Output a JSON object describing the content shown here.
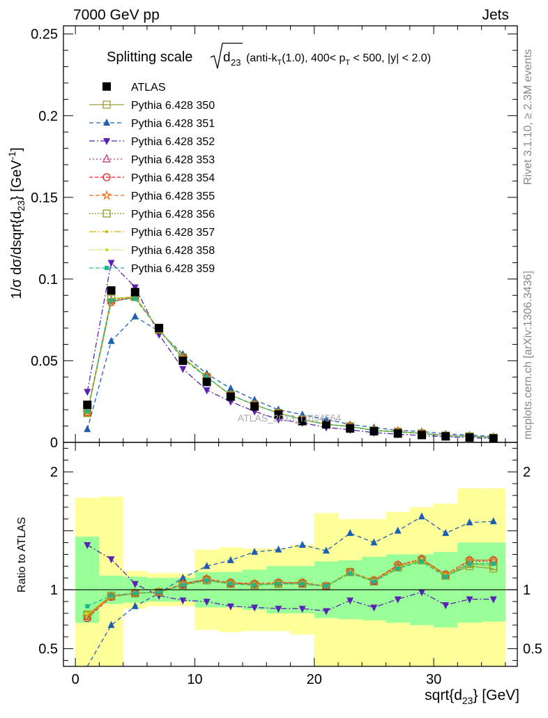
{
  "header": {
    "left": "7000 GeV pp",
    "right": "Jets",
    "side_top": "Rivet 3.1.10, ≥ 2.3M events",
    "side_bottom": "mcplots.cern.ch [arXiv:1306.3436]"
  },
  "chart_data": {
    "type": "scatter",
    "title": "Splitting scale",
    "title_detail": "(anti-k",
    "title_detail_sub": "T",
    "title_detail_rest": "(1.0), 400< p",
    "title_detail_sub2": "T",
    "title_detail_end": " < 500, |y| < 2.0)",
    "sqrt_symbol_arg": "d",
    "sqrt_symbol_sub": "23",
    "watermark": "ATLAS_2013_I1094564",
    "xlabel": "sqrt{d",
    "xlabel_sub": "23",
    "xlabel_end": "} [GeV]",
    "ylabel": "1/σ dσ/dsqrt{d",
    "ylabel_sub": "23",
    "ylabel_mid": "} [GeV",
    "ylabel_sup": "-1",
    "ylabel_end": "]",
    "ratio_ylabel": "Ratio to ATLAS",
    "xlim": [
      -1,
      37
    ],
    "ylim": [
      0,
      0.255
    ],
    "ratio_ylim": [
      0.35,
      2.25
    ],
    "x_ticks": [
      "0",
      "10",
      "20",
      "30"
    ],
    "y_ticks": [
      "0",
      "0.05",
      "0.1",
      "0.15",
      "0.2",
      "0.25"
    ],
    "ratio_y_ticks": [
      "0.5",
      "1",
      "2"
    ],
    "x": [
      1,
      3,
      5,
      7,
      9,
      11,
      13,
      15,
      17,
      19,
      21,
      23,
      25,
      27,
      29,
      31,
      33,
      35
    ],
    "bin_edges": [
      0,
      2,
      4,
      6,
      8,
      10,
      12,
      14,
      16,
      18,
      20,
      22,
      24,
      26,
      28,
      30,
      32,
      34,
      36
    ],
    "data": [
      0.023,
      0.093,
      0.092,
      0.07,
      0.05,
      0.037,
      0.028,
      0.022,
      0.017,
      0.013,
      0.011,
      0.0085,
      0.0068,
      0.0054,
      0.0045,
      0.0037,
      0.003,
      0.0024
    ],
    "band_inner": [
      [
        0.72,
        1.45
      ],
      [
        0.88,
        1.12
      ],
      [
        0.89,
        1.11
      ],
      [
        0.9,
        1.1
      ],
      [
        0.9,
        1.1
      ],
      [
        0.85,
        1.15
      ],
      [
        0.85,
        1.15
      ],
      [
        0.83,
        1.17
      ],
      [
        0.8,
        1.2
      ],
      [
        0.8,
        1.2
      ],
      [
        0.76,
        1.24
      ],
      [
        0.75,
        1.25
      ],
      [
        0.74,
        1.28
      ],
      [
        0.72,
        1.3
      ],
      [
        0.7,
        1.3
      ],
      [
        0.68,
        1.32
      ],
      [
        0.72,
        1.4
      ],
      [
        0.73,
        1.4
      ]
    ],
    "band_outer": [
      [
        0.35,
        1.78
      ],
      [
        0.35,
        1.79
      ],
      [
        0.84,
        1.16
      ],
      [
        0.86,
        1.14
      ],
      [
        0.86,
        1.14
      ],
      [
        0.66,
        1.34
      ],
      [
        0.64,
        1.36
      ],
      [
        0.65,
        1.35
      ],
      [
        0.65,
        1.35
      ],
      [
        0.62,
        1.38
      ],
      [
        0.35,
        1.65
      ],
      [
        0.35,
        1.6
      ],
      [
        0.35,
        1.6
      ],
      [
        0.35,
        1.66
      ],
      [
        0.35,
        1.7
      ],
      [
        0.35,
        1.73
      ],
      [
        0.35,
        1.86
      ],
      [
        0.35,
        1.86
      ]
    ],
    "series": [
      {
        "name": "ATLAS",
        "color": "#000000",
        "marker": "square-filled",
        "dash": "none",
        "values": [
          0.023,
          0.093,
          0.092,
          0.07,
          0.05,
          0.037,
          0.028,
          0.022,
          0.017,
          0.013,
          0.011,
          0.0085,
          0.0068,
          0.0054,
          0.0045,
          0.0037,
          0.003,
          0.0024
        ],
        "ratio": [
          1,
          1,
          1,
          1,
          1,
          1,
          1,
          1,
          1,
          1,
          1,
          1,
          1,
          1,
          1,
          1,
          1,
          1
        ]
      },
      {
        "name": "Pythia 6.428 350",
        "color": "#a09a34",
        "marker": "square-open",
        "dash": "none",
        "values": [
          0.018,
          0.088,
          0.089,
          0.069,
          0.052,
          0.04,
          0.029,
          0.023,
          0.018,
          0.014,
          0.011,
          0.0098,
          0.0073,
          0.0065,
          0.0055,
          0.0041,
          0.0037,
          0.0029
        ],
        "ratio": [
          0.78,
          0.95,
          0.97,
          0.98,
          1.04,
          1.08,
          1.05,
          1.04,
          1.05,
          1.05,
          1.03,
          1.15,
          1.07,
          1.19,
          1.25,
          1.12,
          1.2,
          1.18
        ]
      },
      {
        "name": "Pythia 6.428 351",
        "color": "#1a5fb4",
        "marker": "triangle-up",
        "dash": "6,4",
        "values": [
          0.008,
          0.062,
          0.077,
          0.068,
          0.054,
          0.042,
          0.033,
          0.026,
          0.02,
          0.017,
          0.014,
          0.011,
          0.0091,
          0.0074,
          0.0067,
          0.0052,
          0.0045,
          0.0036
        ],
        "ratio": [
          0.35,
          0.7,
          0.86,
          0.97,
          1.1,
          1.2,
          1.25,
          1.32,
          1.34,
          1.38,
          1.33,
          1.48,
          1.4,
          1.5,
          1.62,
          1.48,
          1.57,
          1.58
        ]
      },
      {
        "name": "Pythia 6.428 352",
        "color": "#5b21b6",
        "marker": "triangle-down",
        "dash": "8,3,2,3",
        "values": [
          0.031,
          0.11,
          0.095,
          0.066,
          0.045,
          0.032,
          0.025,
          0.019,
          0.014,
          0.012,
          0.0092,
          0.0077,
          0.006,
          0.005,
          0.0042,
          0.0034,
          0.0029,
          0.0023
        ],
        "ratio": [
          1.38,
          1.26,
          1.05,
          0.95,
          0.91,
          0.9,
          0.86,
          0.85,
          0.84,
          0.84,
          0.82,
          0.91,
          0.85,
          0.92,
          0.98,
          0.87,
          0.92,
          0.92
        ]
      },
      {
        "name": "Pythia 6.428 353",
        "color": "#c0307a",
        "marker": "triangle-open",
        "dash": "2,3",
        "values": [
          0.018,
          0.087,
          0.089,
          0.069,
          0.052,
          0.04,
          0.029,
          0.023,
          0.018,
          0.014,
          0.011,
          0.0098,
          0.0073,
          0.0066,
          0.0056,
          0.0041,
          0.0038,
          0.003
        ],
        "ratio": [
          0.77,
          0.94,
          0.97,
          0.98,
          1.04,
          1.09,
          1.05,
          1.05,
          1.06,
          1.05,
          1.03,
          1.15,
          1.07,
          1.2,
          1.26,
          1.12,
          1.24,
          1.24
        ]
      },
      {
        "name": "Pythia 6.428 354",
        "color": "#e01b24",
        "marker": "circle-open",
        "dash": "5,3",
        "values": [
          0.018,
          0.086,
          0.089,
          0.069,
          0.052,
          0.04,
          0.029,
          0.023,
          0.018,
          0.014,
          0.011,
          0.0098,
          0.0073,
          0.0066,
          0.0056,
          0.0042,
          0.0038,
          0.003
        ],
        "ratio": [
          0.76,
          0.94,
          0.97,
          0.98,
          1.05,
          1.09,
          1.06,
          1.05,
          1.06,
          1.06,
          1.03,
          1.15,
          1.08,
          1.21,
          1.26,
          1.13,
          1.25,
          1.25
        ]
      },
      {
        "name": "Pythia 6.428 355",
        "color": "#f07020",
        "marker": "star-open",
        "dash": "6,3",
        "values": [
          0.018,
          0.086,
          0.089,
          0.069,
          0.052,
          0.04,
          0.029,
          0.023,
          0.018,
          0.014,
          0.011,
          0.0098,
          0.0073,
          0.0066,
          0.0056,
          0.0042,
          0.0038,
          0.003
        ],
        "ratio": [
          0.77,
          0.94,
          0.97,
          0.98,
          1.05,
          1.09,
          1.06,
          1.05,
          1.06,
          1.06,
          1.03,
          1.15,
          1.08,
          1.21,
          1.26,
          1.13,
          1.25,
          1.25
        ]
      },
      {
        "name": "Pythia 6.428 356",
        "color": "#8a9a20",
        "marker": "square-open",
        "dash": "2,2",
        "values": [
          0.018,
          0.088,
          0.089,
          0.069,
          0.052,
          0.04,
          0.029,
          0.023,
          0.018,
          0.014,
          0.011,
          0.0098,
          0.0073,
          0.0065,
          0.0055,
          0.0041,
          0.0037,
          0.0029
        ],
        "ratio": [
          0.79,
          0.95,
          0.97,
          0.98,
          1.04,
          1.08,
          1.05,
          1.04,
          1.05,
          1.05,
          1.03,
          1.15,
          1.07,
          1.19,
          1.25,
          1.12,
          1.22,
          1.2
        ]
      },
      {
        "name": "Pythia 6.428 357",
        "color": "#d4b400",
        "marker": "dot",
        "dash": "10,3,2,3",
        "values": [
          0.018,
          0.088,
          0.089,
          0.069,
          0.052,
          0.04,
          0.029,
          0.023,
          0.018,
          0.014,
          0.011,
          0.0098,
          0.0073,
          0.0065,
          0.0055,
          0.0041,
          0.0037,
          0.0029
        ],
        "ratio": [
          0.79,
          0.95,
          0.97,
          0.98,
          1.04,
          1.08,
          1.05,
          1.04,
          1.05,
          1.05,
          1.03,
          1.15,
          1.07,
          1.19,
          1.25,
          1.12,
          1.22,
          1.22
        ]
      },
      {
        "name": "Pythia 6.428 358",
        "color": "#c8d400",
        "marker": "dot",
        "dash": "1,2",
        "values": [
          0.018,
          0.088,
          0.089,
          0.069,
          0.052,
          0.04,
          0.029,
          0.023,
          0.018,
          0.014,
          0.011,
          0.0098,
          0.0073,
          0.0065,
          0.0055,
          0.0041,
          0.0037,
          0.0029
        ],
        "ratio": [
          0.8,
          0.95,
          0.97,
          0.98,
          1.04,
          1.08,
          1.05,
          1.04,
          1.05,
          1.05,
          1.03,
          1.15,
          1.07,
          1.19,
          1.25,
          1.12,
          1.22,
          1.22
        ]
      },
      {
        "name": "Pythia 6.428 359",
        "color": "#1ab890",
        "marker": "square-filled-small",
        "dash": "6,3",
        "values": [
          0.019,
          0.087,
          0.088,
          0.069,
          0.051,
          0.04,
          0.029,
          0.023,
          0.018,
          0.014,
          0.011,
          0.0097,
          0.0072,
          0.0064,
          0.0055,
          0.0041,
          0.0037,
          0.0029
        ],
        "ratio": [
          0.86,
          0.95,
          0.97,
          0.98,
          1.04,
          1.08,
          1.05,
          1.04,
          1.05,
          1.05,
          1.03,
          1.14,
          1.07,
          1.18,
          1.24,
          1.11,
          1.22,
          1.22
        ]
      }
    ]
  }
}
